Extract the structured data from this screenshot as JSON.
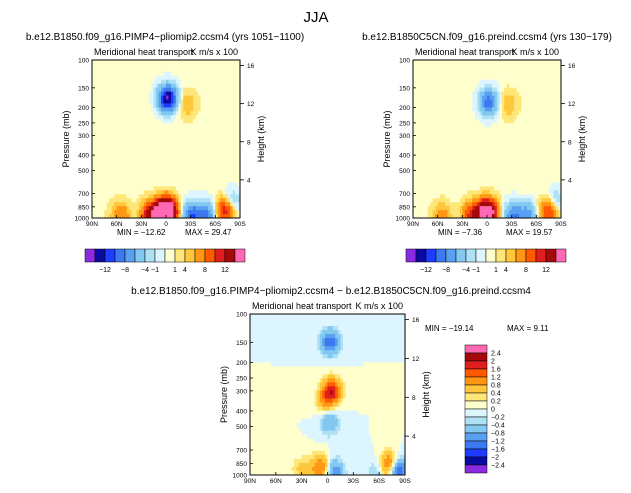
{
  "figure": {
    "season": "JJA"
  },
  "chart_data": [
    {
      "type": "heatmap",
      "id": "p1",
      "title": "b.e12.B1850.f09_g16.PIMP4−pliomip2.ccsm4 (yrs 1051−1100)",
      "subtitle": "Meridional heat transport",
      "units": "K m/s x 100",
      "xlabel": "",
      "ylabel": "Pressure (mb)",
      "ylabel_right": "Height (km)",
      "x_ticks": [
        "90N",
        "60N",
        "30N",
        "0",
        "30S",
        "60S",
        "90S"
      ],
      "y_ticks": [
        "100",
        "150",
        "200",
        "250",
        "300",
        "400",
        "500",
        "700",
        "850",
        "1000"
      ],
      "height_ticks": [
        "16",
        "12",
        "8",
        "4"
      ],
      "min_label": "MIN = −12.62",
      "max_label": "MAX = 29.47",
      "min": -12.62,
      "max": 29.47,
      "features": [
        {
          "lat": -2,
          "p": 175,
          "value": -12.6
        },
        {
          "lat": -25,
          "p": 190,
          "value": 2
        },
        {
          "lat": 0,
          "p": 920,
          "value": 29.5
        },
        {
          "lat": 18,
          "p": 955,
          "value": 10
        },
        {
          "lat": -32,
          "p": 960,
          "value": -8
        },
        {
          "lat": -50,
          "p": 960,
          "value": -6
        },
        {
          "lat": 55,
          "p": 975,
          "value": 4
        },
        {
          "lat": -72,
          "p": 900,
          "value": 8
        },
        {
          "lat": -80,
          "p": 800,
          "value": -3
        }
      ]
    },
    {
      "type": "heatmap",
      "id": "p2",
      "title": "b.e12.B1850C5CN.f09_g16.preind.ccsm4 (yrs 130−179)",
      "subtitle": "Meridional heat transport",
      "units": "K m/s x 100",
      "xlabel": "",
      "ylabel": "Pressure (mb)",
      "ylabel_right": "Height (km)",
      "x_ticks": [
        "90N",
        "60N",
        "30N",
        "0",
        "30S",
        "60S",
        "90S"
      ],
      "y_ticks": [
        "100",
        "150",
        "200",
        "250",
        "300",
        "400",
        "500",
        "700",
        "850",
        "1000"
      ],
      "height_ticks": [
        "16",
        "12",
        "8",
        "4"
      ],
      "min_label": "MIN = −7.36",
      "max_label": "MAX = 19.57",
      "min": -7.36,
      "max": 19.57,
      "features": [
        {
          "lat": -2,
          "p": 185,
          "value": -7.3
        },
        {
          "lat": -25,
          "p": 190,
          "value": 2
        },
        {
          "lat": 0,
          "p": 930,
          "value": 19.5
        },
        {
          "lat": 18,
          "p": 955,
          "value": 7
        },
        {
          "lat": -32,
          "p": 960,
          "value": -6
        },
        {
          "lat": -50,
          "p": 960,
          "value": -5
        },
        {
          "lat": 55,
          "p": 975,
          "value": 3
        },
        {
          "lat": -75,
          "p": 900,
          "value": 7
        },
        {
          "lat": -82,
          "p": 800,
          "value": -3
        }
      ]
    },
    {
      "type": "heatmap",
      "id": "p3",
      "title": "b.e12.B1850.f09_g16.PIMP4−pliomip2.ccsm4 − b.e12.B1850C5CN.f09_g16.preind.ccsm4",
      "subtitle": "Meridional heat transport",
      "units": "K m/s x 100",
      "xlabel": "",
      "ylabel": "Pressure (mb)",
      "ylabel_right": "Height (km)",
      "x_ticks": [
        "90N",
        "60N",
        "30N",
        "0",
        "30S",
        "60S",
        "90S"
      ],
      "y_ticks": [
        "100",
        "150",
        "200",
        "250",
        "300",
        "400",
        "500",
        "700",
        "850",
        "1000"
      ],
      "height_ticks": [
        "16",
        "12",
        "8",
        "4"
      ],
      "min_label": "MIN = −19.14",
      "max_label": "MAX =    9.11",
      "min": -19.14,
      "max": 9.11,
      "features": [
        {
          "lat": -3,
          "p": 150,
          "value": -1.5
        },
        {
          "lat": -5,
          "p": 300,
          "value": 1.8
        },
        {
          "lat": 3,
          "p": 350,
          "value": 0.7
        },
        {
          "lat": -2,
          "p": 470,
          "value": -0.8
        },
        {
          "lat": 8,
          "p": 900,
          "value": 1.3
        },
        {
          "lat": -8,
          "p": 960,
          "value": -1.2
        },
        {
          "lat": 30,
          "p": 920,
          "value": 0.5
        },
        {
          "lat": -72,
          "p": 880,
          "value": 2.2
        },
        {
          "lat": -80,
          "p": 930,
          "value": -2.2
        },
        {
          "lat": -60,
          "p": 940,
          "value": -0.6
        }
      ]
    }
  ],
  "colorbars": {
    "top": {
      "levels": [
        "−12",
        "−8",
        "−4",
        "−1",
        "1",
        "4",
        "8",
        "12"
      ],
      "colors": [
        "#8a2be2",
        "#0a0aa0",
        "#1e3cff",
        "#3c78f0",
        "#5aa0f0",
        "#82c8f0",
        "#afe1f5",
        "#dcf5ff",
        "#ffffcd",
        "#ffe678",
        "#ffc83c",
        "#ff9614",
        "#ff5a00",
        "#e11e1e",
        "#a50a0a",
        "#ff69b4"
      ]
    },
    "bottom": {
      "levels": [
        "2.4",
        "2",
        "1.6",
        "1.2",
        "0.8",
        "0.4",
        "0.2",
        "0",
        "−0.2",
        "−0.4",
        "−0.8",
        "−1.2",
        "−1.6",
        "−2",
        "−2.4"
      ],
      "colors": [
        "#ff69b4",
        "#a50a0a",
        "#e11e1e",
        "#ff5a00",
        "#ff9614",
        "#ffc83c",
        "#ffe678",
        "#ffffcd",
        "#dcf5ff",
        "#afe1f5",
        "#82c8f0",
        "#5aa0f0",
        "#3c78f0",
        "#1e3cff",
        "#0a0aa0",
        "#8a2be2"
      ]
    }
  }
}
